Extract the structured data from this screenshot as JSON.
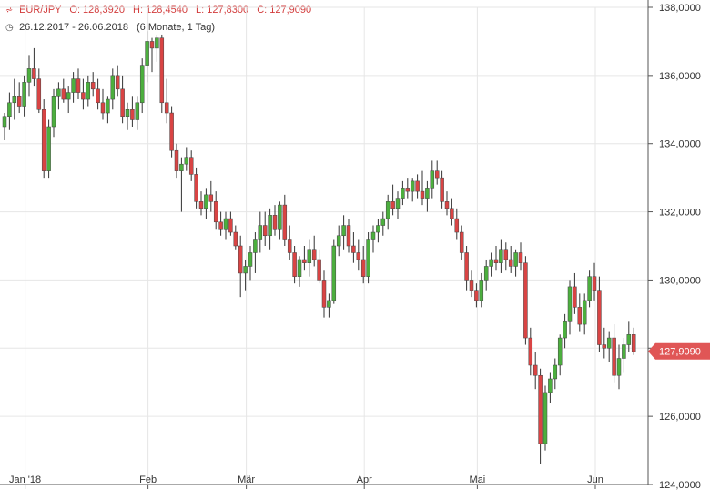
{
  "header": {
    "symbol": "EUR/JPY",
    "open": "O: 128,3920",
    "high": "H: 128,4540",
    "low": "L: 127,8300",
    "close": "C: 127,9090",
    "range": "26.12.2017 - 26.06.2018",
    "period": "(6 Monate, 1 Tag)"
  },
  "last_price": {
    "label": "127,9090",
    "value": 127.909,
    "color": "#e05656"
  },
  "colors": {
    "up": "#4caf3e",
    "down": "#d94444",
    "wick": "#333333",
    "grid": "#e6e6e6"
  },
  "chart_data": {
    "type": "candlestick",
    "ylim": [
      124,
      138
    ],
    "yticks": [
      {
        "value": 124,
        "label": "124,0000"
      },
      {
        "value": 126,
        "label": "126,0000"
      },
      {
        "value": 128,
        "label": "128,0000"
      },
      {
        "value": 130,
        "label": "130,0000"
      },
      {
        "value": 132,
        "label": "132,0000"
      },
      {
        "value": 134,
        "label": "134,0000"
      },
      {
        "value": 136,
        "label": "136,0000"
      },
      {
        "value": 138,
        "label": "138,0000"
      }
    ],
    "xticks": [
      {
        "index": 4,
        "label": "Jan '18"
      },
      {
        "index": 29,
        "label": "Feb"
      },
      {
        "index": 49,
        "label": "Mär"
      },
      {
        "index": 73,
        "label": "Apr"
      },
      {
        "index": 96,
        "label": "Mai"
      },
      {
        "index": 120,
        "label": "Jun"
      }
    ],
    "candles": [
      [
        134.5,
        134.9,
        134.1,
        134.8
      ],
      [
        134.8,
        135.5,
        134.4,
        135.2
      ],
      [
        135.2,
        135.9,
        134.7,
        135.4
      ],
      [
        135.4,
        135.8,
        134.9,
        135.1
      ],
      [
        135.1,
        136.0,
        134.8,
        135.8
      ],
      [
        135.8,
        136.6,
        135.4,
        136.2
      ],
      [
        136.2,
        136.8,
        135.7,
        135.9
      ],
      [
        135.9,
        136.2,
        134.9,
        135.0
      ],
      [
        135.0,
        135.3,
        133.0,
        133.2
      ],
      [
        133.2,
        134.7,
        133.0,
        134.5
      ],
      [
        134.5,
        135.6,
        134.2,
        135.4
      ],
      [
        135.4,
        135.8,
        135.0,
        135.6
      ],
      [
        135.6,
        135.9,
        135.2,
        135.3
      ],
      [
        135.3,
        135.7,
        134.9,
        135.5
      ],
      [
        135.5,
        136.1,
        135.2,
        135.9
      ],
      [
        135.9,
        136.2,
        135.3,
        135.5
      ],
      [
        135.5,
        135.9,
        135.0,
        135.3
      ],
      [
        135.3,
        136.0,
        135.1,
        135.8
      ],
      [
        135.8,
        136.1,
        135.4,
        135.6
      ],
      [
        135.6,
        135.9,
        135.0,
        135.2
      ],
      [
        135.2,
        135.6,
        134.7,
        134.9
      ],
      [
        134.9,
        135.4,
        134.6,
        135.3
      ],
      [
        135.3,
        136.2,
        135.0,
        136.0
      ],
      [
        136.0,
        136.3,
        135.4,
        135.6
      ],
      [
        135.6,
        136.0,
        134.6,
        134.8
      ],
      [
        134.8,
        135.2,
        134.4,
        135.0
      ],
      [
        135.0,
        135.4,
        134.5,
        134.7
      ],
      [
        134.7,
        135.4,
        134.4,
        135.2
      ],
      [
        135.2,
        136.5,
        134.9,
        136.3
      ],
      [
        136.3,
        137.3,
        135.8,
        137.0
      ],
      [
        137.0,
        137.1,
        136.1,
        136.8
      ],
      [
        136.8,
        137.2,
        136.4,
        137.1
      ],
      [
        137.1,
        137.2,
        134.9,
        135.2
      ],
      [
        135.2,
        135.9,
        134.6,
        134.9
      ],
      [
        134.9,
        135.1,
        133.6,
        133.8
      ],
      [
        133.8,
        134.0,
        133.0,
        133.2
      ],
      [
        133.2,
        133.6,
        132.0,
        133.4
      ],
      [
        133.4,
        133.9,
        133.2,
        133.6
      ],
      [
        133.6,
        133.8,
        132.9,
        133.1
      ],
      [
        133.1,
        133.3,
        132.1,
        132.3
      ],
      [
        132.3,
        132.6,
        131.9,
        132.1
      ],
      [
        132.1,
        132.7,
        131.8,
        132.5
      ],
      [
        132.5,
        132.9,
        132.0,
        132.3
      ],
      [
        132.3,
        132.6,
        131.5,
        131.7
      ],
      [
        131.7,
        132.0,
        131.3,
        131.5
      ],
      [
        131.5,
        132.0,
        131.2,
        131.8
      ],
      [
        131.8,
        132.0,
        131.3,
        131.4
      ],
      [
        131.4,
        131.6,
        130.9,
        131.0
      ],
      [
        131.0,
        131.3,
        129.5,
        130.2
      ],
      [
        130.2,
        130.6,
        129.7,
        130.4
      ],
      [
        130.4,
        131.0,
        130.0,
        130.8
      ],
      [
        130.8,
        131.4,
        130.2,
        131.2
      ],
      [
        131.2,
        132.0,
        130.8,
        131.6
      ],
      [
        131.6,
        132.0,
        131.0,
        131.3
      ],
      [
        131.3,
        132.1,
        130.9,
        131.9
      ],
      [
        131.9,
        132.2,
        131.3,
        131.5
      ],
      [
        131.5,
        132.3,
        131.2,
        132.2
      ],
      [
        132.2,
        132.5,
        131.0,
        131.2
      ],
      [
        131.2,
        131.6,
        130.6,
        130.8
      ],
      [
        130.8,
        131.0,
        129.9,
        130.1
      ],
      [
        130.1,
        130.7,
        129.8,
        130.6
      ],
      [
        130.6,
        131.0,
        130.3,
        130.5
      ],
      [
        130.5,
        131.2,
        130.1,
        130.9
      ],
      [
        130.9,
        131.3,
        130.4,
        130.6
      ],
      [
        130.6,
        130.9,
        129.9,
        130.0
      ],
      [
        130.0,
        130.3,
        128.9,
        129.2
      ],
      [
        129.2,
        129.6,
        128.9,
        129.4
      ],
      [
        129.4,
        131.2,
        129.3,
        131.0
      ],
      [
        131.0,
        131.6,
        130.7,
        131.3
      ],
      [
        131.3,
        131.9,
        130.9,
        131.6
      ],
      [
        131.6,
        131.8,
        130.8,
        131.0
      ],
      [
        131.0,
        131.4,
        130.5,
        130.8
      ],
      [
        130.8,
        131.2,
        130.3,
        130.6
      ],
      [
        130.6,
        131.0,
        129.9,
        130.1
      ],
      [
        130.1,
        131.4,
        129.9,
        131.2
      ],
      [
        131.2,
        131.6,
        130.8,
        131.4
      ],
      [
        131.4,
        131.8,
        131.1,
        131.6
      ],
      [
        131.6,
        132.0,
        131.3,
        131.8
      ],
      [
        131.8,
        132.5,
        131.5,
        132.3
      ],
      [
        132.3,
        132.8,
        131.9,
        132.1
      ],
      [
        132.1,
        132.6,
        131.8,
        132.4
      ],
      [
        132.4,
        132.9,
        132.2,
        132.7
      ],
      [
        132.7,
        133.0,
        132.4,
        132.6
      ],
      [
        132.6,
        133.0,
        132.3,
        132.9
      ],
      [
        132.9,
        133.1,
        132.4,
        132.6
      ],
      [
        132.6,
        133.2,
        132.2,
        132.4
      ],
      [
        132.4,
        132.9,
        132.0,
        132.7
      ],
      [
        132.7,
        133.5,
        132.4,
        133.2
      ],
      [
        133.2,
        133.5,
        132.8,
        133.0
      ],
      [
        133.0,
        133.2,
        132.1,
        132.3
      ],
      [
        132.3,
        132.6,
        131.9,
        132.1
      ],
      [
        132.1,
        132.4,
        131.6,
        131.8
      ],
      [
        131.8,
        132.1,
        131.2,
        131.4
      ],
      [
        131.4,
        131.6,
        130.6,
        130.8
      ],
      [
        130.8,
        131.0,
        129.7,
        130.0
      ],
      [
        130.0,
        130.3,
        129.5,
        129.7
      ],
      [
        129.7,
        129.9,
        129.2,
        129.4
      ],
      [
        129.4,
        130.2,
        129.2,
        130.0
      ],
      [
        130.0,
        130.6,
        129.7,
        130.4
      ],
      [
        130.4,
        130.8,
        130.1,
        130.6
      ],
      [
        130.6,
        131.0,
        130.3,
        130.5
      ],
      [
        130.5,
        131.2,
        130.2,
        130.9
      ],
      [
        130.9,
        131.1,
        130.3,
        130.6
      ],
      [
        130.6,
        131.0,
        130.2,
        130.4
      ],
      [
        130.4,
        130.9,
        130.1,
        130.8
      ],
      [
        130.8,
        131.1,
        130.3,
        130.5
      ],
      [
        130.5,
        130.7,
        128.1,
        128.3
      ],
      [
        128.3,
        128.6,
        127.2,
        127.5
      ],
      [
        127.5,
        127.9,
        126.8,
        127.2
      ],
      [
        127.2,
        127.4,
        124.6,
        125.2
      ],
      [
        125.2,
        126.9,
        125.0,
        126.7
      ],
      [
        126.7,
        127.3,
        126.4,
        127.1
      ],
      [
        127.1,
        127.7,
        126.8,
        127.5
      ],
      [
        127.5,
        128.4,
        127.2,
        128.3
      ],
      [
        128.3,
        129.0,
        128.0,
        128.8
      ],
      [
        128.8,
        130.0,
        128.4,
        129.8
      ],
      [
        129.8,
        130.2,
        129.0,
        129.2
      ],
      [
        129.2,
        129.6,
        128.5,
        128.7
      ],
      [
        128.7,
        129.6,
        128.4,
        129.4
      ],
      [
        129.4,
        130.3,
        129.2,
        130.1
      ],
      [
        130.1,
        130.5,
        129.4,
        129.7
      ],
      [
        129.7,
        130.1,
        127.9,
        128.1
      ],
      [
        128.1,
        128.6,
        127.7,
        128.0
      ],
      [
        128.0,
        128.5,
        127.6,
        128.3
      ],
      [
        128.3,
        128.7,
        127.0,
        127.2
      ],
      [
        127.2,
        128.1,
        126.8,
        127.7
      ],
      [
        127.7,
        128.3,
        127.3,
        128.1
      ],
      [
        128.1,
        128.8,
        127.9,
        128.4
      ],
      [
        128.4,
        128.6,
        127.8,
        127.9
      ]
    ]
  }
}
